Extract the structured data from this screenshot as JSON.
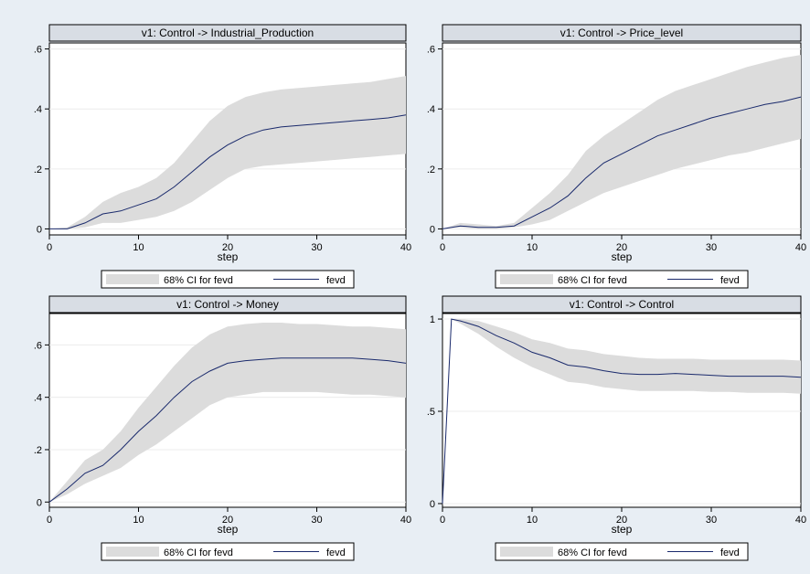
{
  "x_axis": {
    "label": "step",
    "ticks": [
      0,
      10,
      20,
      30,
      40
    ],
    "tick_labels": [
      "0",
      "10",
      "20",
      "30",
      "40"
    ],
    "range": [
      0,
      40
    ]
  },
  "legend": {
    "ci_label": "68% CI for fevd",
    "line_label": "fevd",
    "placement": "bottom"
  },
  "colors": {
    "background": "#e8eef4",
    "plot_bg": "#ffffff",
    "title_bar": "#d8dde4",
    "ci_fill": "#dcdcdc",
    "line": "#1a2a6c",
    "grid": "#ececec"
  },
  "chart_data": [
    {
      "type": "area",
      "title": "v1: Control -> Industrial_Production",
      "xlabel": "step",
      "ylim": [
        -0.02,
        0.62
      ],
      "yticks": [
        0,
        0.2,
        0.4,
        0.6
      ],
      "ytick_labels": [
        "0",
        ".2",
        ".4",
        ".6"
      ],
      "grid": true,
      "x": [
        0,
        2,
        4,
        6,
        8,
        10,
        12,
        14,
        16,
        18,
        20,
        22,
        24,
        26,
        28,
        30,
        32,
        34,
        36,
        38,
        40
      ],
      "series": [
        {
          "name": "fevd",
          "values": [
            0,
            0,
            0.02,
            0.05,
            0.06,
            0.08,
            0.1,
            0.14,
            0.19,
            0.24,
            0.28,
            0.31,
            0.33,
            0.34,
            0.345,
            0.35,
            0.355,
            0.36,
            0.365,
            0.37,
            0.38
          ]
        },
        {
          "name": "68% CI for fevd",
          "lower": [
            0,
            0,
            0.005,
            0.02,
            0.02,
            0.03,
            0.04,
            0.06,
            0.09,
            0.13,
            0.17,
            0.2,
            0.21,
            0.215,
            0.22,
            0.225,
            0.23,
            0.235,
            0.24,
            0.245,
            0.25
          ],
          "upper": [
            0,
            0.005,
            0.04,
            0.09,
            0.12,
            0.14,
            0.17,
            0.22,
            0.29,
            0.36,
            0.41,
            0.44,
            0.455,
            0.465,
            0.47,
            0.475,
            0.48,
            0.485,
            0.49,
            0.5,
            0.51
          ]
        }
      ]
    },
    {
      "type": "area",
      "title": "v1: Control -> Price_level",
      "xlabel": "step",
      "ylim": [
        -0.02,
        0.62
      ],
      "yticks": [
        0,
        0.2,
        0.4,
        0.6
      ],
      "ytick_labels": [
        "0",
        ".2",
        ".4",
        ".6"
      ],
      "grid": true,
      "x": [
        0,
        2,
        4,
        6,
        8,
        10,
        12,
        14,
        16,
        18,
        20,
        22,
        24,
        26,
        28,
        30,
        32,
        34,
        36,
        38,
        40
      ],
      "series": [
        {
          "name": "fevd",
          "values": [
            0,
            0.01,
            0.005,
            0.005,
            0.01,
            0.04,
            0.07,
            0.11,
            0.17,
            0.22,
            0.25,
            0.28,
            0.31,
            0.33,
            0.35,
            0.37,
            0.385,
            0.4,
            0.415,
            0.425,
            0.44
          ]
        },
        {
          "name": "68% CI for fevd",
          "lower": [
            0,
            0.005,
            0.0,
            0.0,
            0.005,
            0.015,
            0.03,
            0.06,
            0.09,
            0.12,
            0.14,
            0.16,
            0.18,
            0.2,
            0.215,
            0.23,
            0.245,
            0.255,
            0.27,
            0.285,
            0.3
          ],
          "upper": [
            0,
            0.02,
            0.015,
            0.01,
            0.02,
            0.07,
            0.12,
            0.18,
            0.26,
            0.31,
            0.35,
            0.39,
            0.43,
            0.46,
            0.48,
            0.5,
            0.52,
            0.54,
            0.555,
            0.57,
            0.58
          ]
        }
      ]
    },
    {
      "type": "area",
      "title": "v1: Control -> Money",
      "xlabel": "step",
      "ylim": [
        -0.02,
        0.72
      ],
      "yticks": [
        0,
        0.2,
        0.4,
        0.6
      ],
      "ytick_labels": [
        "0",
        ".2",
        ".4",
        ".6"
      ],
      "grid": true,
      "x": [
        0,
        2,
        4,
        6,
        8,
        10,
        12,
        14,
        16,
        18,
        20,
        22,
        24,
        26,
        28,
        30,
        32,
        34,
        36,
        38,
        40
      ],
      "series": [
        {
          "name": "fevd",
          "values": [
            0,
            0.05,
            0.11,
            0.14,
            0.2,
            0.27,
            0.33,
            0.4,
            0.46,
            0.5,
            0.53,
            0.54,
            0.545,
            0.55,
            0.55,
            0.55,
            0.55,
            0.55,
            0.545,
            0.54,
            0.53
          ]
        },
        {
          "name": "68% CI for fevd",
          "lower": [
            0,
            0.03,
            0.07,
            0.1,
            0.13,
            0.18,
            0.22,
            0.27,
            0.32,
            0.37,
            0.4,
            0.41,
            0.42,
            0.42,
            0.42,
            0.42,
            0.415,
            0.41,
            0.41,
            0.405,
            0.4
          ],
          "upper": [
            0,
            0.08,
            0.16,
            0.2,
            0.27,
            0.36,
            0.44,
            0.52,
            0.59,
            0.64,
            0.67,
            0.68,
            0.685,
            0.685,
            0.68,
            0.68,
            0.675,
            0.67,
            0.67,
            0.665,
            0.66
          ]
        }
      ]
    },
    {
      "type": "area",
      "title": "v1: Control -> Control",
      "xlabel": "step",
      "ylim": [
        -0.02,
        1.03
      ],
      "yticks": [
        0,
        0.5,
        1
      ],
      "ytick_labels": [
        "0",
        ".5",
        "1"
      ],
      "grid": true,
      "x": [
        0,
        1,
        2,
        4,
        6,
        8,
        10,
        12,
        14,
        16,
        18,
        20,
        22,
        24,
        26,
        28,
        30,
        32,
        34,
        36,
        38,
        40
      ],
      "series": [
        {
          "name": "fevd",
          "values": [
            0,
            1.0,
            0.99,
            0.96,
            0.91,
            0.87,
            0.82,
            0.79,
            0.75,
            0.74,
            0.72,
            0.705,
            0.7,
            0.7,
            0.705,
            0.7,
            0.695,
            0.69,
            0.69,
            0.69,
            0.69,
            0.685
          ]
        },
        {
          "name": "68% CI for fevd",
          "lower": [
            0,
            1.0,
            0.975,
            0.92,
            0.85,
            0.79,
            0.74,
            0.7,
            0.66,
            0.65,
            0.63,
            0.62,
            0.61,
            0.61,
            0.61,
            0.61,
            0.605,
            0.605,
            0.6,
            0.6,
            0.6,
            0.595
          ],
          "upper": [
            0,
            1.0,
            1.0,
            0.99,
            0.96,
            0.93,
            0.89,
            0.87,
            0.84,
            0.83,
            0.81,
            0.8,
            0.79,
            0.785,
            0.785,
            0.785,
            0.78,
            0.78,
            0.78,
            0.78,
            0.78,
            0.775
          ]
        }
      ]
    }
  ]
}
